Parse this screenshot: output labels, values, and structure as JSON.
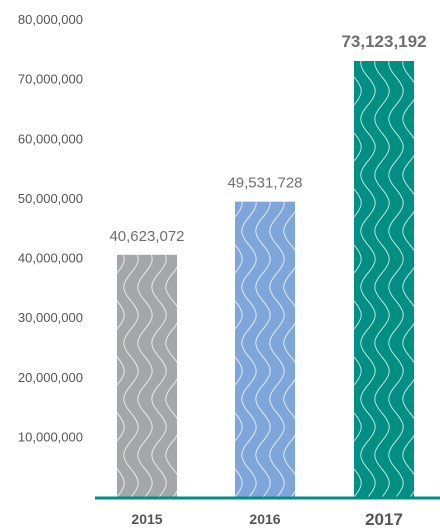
{
  "chart_data": {
    "type": "bar",
    "categories": [
      "2015",
      "2016",
      "2017"
    ],
    "values": [
      40623072,
      49531728,
      73123192
    ],
    "value_labels": [
      "40,623,072",
      "49,531,728",
      "73,123,192"
    ],
    "highlight_index": 2,
    "ylim": [
      0,
      80000000
    ],
    "yticks": [
      10000000,
      20000000,
      30000000,
      40000000,
      50000000,
      60000000,
      70000000,
      80000000
    ],
    "ytick_labels": [
      "10,000,000",
      "20,000,000",
      "30,000,000",
      "40,000,000",
      "50,000,000",
      "60,000,000",
      "70,000,000",
      "80,000,000"
    ],
    "grid": false,
    "legend": "none",
    "colors": [
      "#a5a6a8",
      "#7fa6db",
      "#008f82"
    ],
    "axis_color": "#008f82",
    "highlight_label_color": "#008f82",
    "bar_pattern": "wavy-lines"
  }
}
